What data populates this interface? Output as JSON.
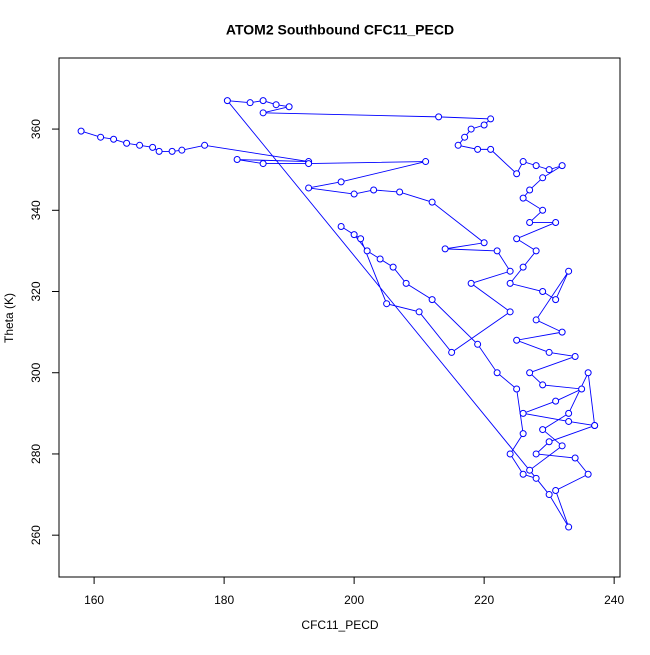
{
  "chart_data": {
    "type": "scatter",
    "connect": true,
    "title": "ATOM2 Southbound CFC11_PECD",
    "x_label": "CFC11_PECD",
    "y_label": "Theta (K)",
    "color": "#0000ff",
    "xlim": [
      154.6,
      240.9
    ],
    "ylim": [
      249.7,
      377.5
    ],
    "xticks": [
      160,
      180,
      200,
      220,
      240
    ],
    "yticks": [
      260,
      280,
      300,
      320,
      340,
      360
    ],
    "x": [
      158,
      161,
      163,
      165,
      167,
      169,
      170,
      172,
      173.5,
      177,
      193,
      182,
      186,
      193,
      211,
      198,
      193,
      200,
      203,
      207,
      212,
      220,
      214,
      222,
      224,
      218,
      224,
      215,
      210,
      205,
      201,
      198,
      200,
      202,
      204,
      206,
      208,
      212,
      219,
      222,
      225,
      226,
      224,
      226,
      228,
      180.5,
      184,
      186,
      188,
      190,
      186,
      213,
      221,
      220,
      218,
      217,
      216,
      219,
      221,
      225,
      226,
      228,
      230,
      232,
      229,
      227,
      226,
      229,
      227,
      231,
      225,
      228,
      226,
      224,
      229,
      231,
      233,
      228,
      232,
      225,
      230,
      234,
      227,
      229,
      235,
      231,
      226,
      233,
      237,
      230,
      228,
      234,
      236,
      231,
      233,
      230,
      227,
      232,
      229,
      233,
      236,
      237
    ],
    "y": [
      359.5,
      358,
      357.5,
      356.5,
      356,
      355.5,
      354.5,
      354.5,
      354.8,
      356,
      352,
      352.5,
      351.5,
      351.5,
      352,
      347,
      345.5,
      344,
      345,
      344.5,
      342,
      332,
      330.5,
      330,
      325,
      322,
      315,
      305,
      315,
      317,
      333,
      336,
      334,
      330,
      328,
      326,
      322,
      318,
      307,
      300,
      296,
      285,
      280,
      275,
      274,
      367,
      366.5,
      367,
      366,
      365.5,
      364,
      363,
      362.5,
      361,
      360,
      358,
      356,
      355,
      355,
      349,
      352,
      351,
      350,
      351,
      348,
      345,
      343,
      340,
      337,
      337,
      333,
      330,
      326,
      322,
      320,
      318,
      325,
      313,
      310,
      308,
      305,
      304,
      300,
      297,
      296,
      293,
      290,
      288,
      287,
      283,
      280,
      279,
      275,
      271,
      262,
      270,
      276,
      282,
      286,
      290,
      300,
      287
    ]
  }
}
